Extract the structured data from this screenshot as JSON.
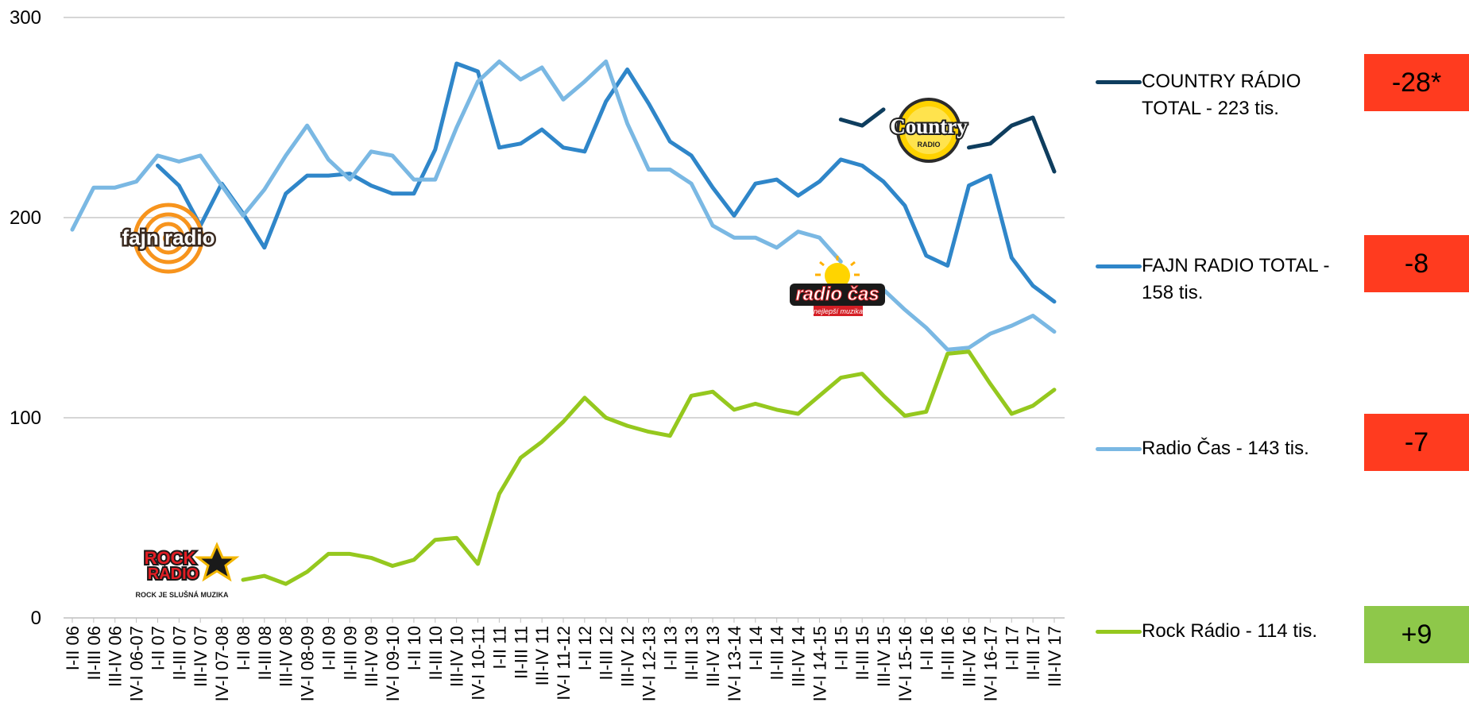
{
  "chart_data": {
    "type": "line",
    "ylim": [
      0,
      300
    ],
    "yticks": [
      0,
      100,
      200,
      300
    ],
    "grid": true,
    "legend_position": "right",
    "categories": [
      "I-II 06",
      "II-III 06",
      "III-IV 06",
      "IV-I 06-07",
      "I-II 07",
      "II-III 07",
      "III-IV 07",
      "IV-I 07-08",
      "I-II 08",
      "II-III 08",
      "III-IV 08",
      "IV-I 08-09",
      "I-II 09",
      "II-III 09",
      "III-IV 09",
      "IV-I 09-10",
      "I-II 10",
      "II-III 10",
      "III-IV 10",
      "IV-I 10-11",
      "I-II 11",
      "II-III 11",
      "III-IV 11",
      "IV-I 11-12",
      "I-II 12",
      "II-III 12",
      "III-IV 12",
      "IV-I 12-13",
      "I-II 13",
      "II-III 13",
      "III-IV 13",
      "IV-I 13-14",
      "I-II 14",
      "II-III 14",
      "III-IV 14",
      "IV-I 14-15",
      "I-II 15",
      "II-III 15",
      "III-IV 15",
      "IV-I 15-16",
      "I-II 16",
      "II-III 16",
      "III-IV 16",
      "IV-I 16-17",
      "I-II 17",
      "II-III 17",
      "III-IV 17"
    ],
    "series": [
      {
        "name": "COUNTRY RÁDIO TOTAL - 223 tis.",
        "color": "#0e3d5e",
        "values": [
          null,
          null,
          null,
          null,
          null,
          null,
          null,
          null,
          null,
          null,
          null,
          null,
          null,
          null,
          null,
          null,
          null,
          null,
          null,
          null,
          null,
          null,
          null,
          null,
          null,
          null,
          null,
          null,
          null,
          null,
          null,
          null,
          null,
          null,
          null,
          null,
          249,
          246,
          254,
          null,
          null,
          null,
          235,
          237,
          246,
          250,
          223
        ]
      },
      {
        "name": "FAJN RADIO TOTAL - 158 tis.",
        "color": "#2f86c9",
        "values": [
          null,
          null,
          null,
          null,
          226,
          216,
          196,
          217,
          202,
          185,
          212,
          221,
          221,
          222,
          216,
          212,
          212,
          234,
          277,
          273,
          235,
          237,
          244,
          235,
          233,
          258,
          274,
          257,
          238,
          231,
          215,
          201,
          217,
          219,
          211,
          218,
          229,
          226,
          218,
          206,
          181,
          176,
          216,
          221,
          180,
          166,
          158
        ]
      },
      {
        "name": "Radio Čas - 143 tis.",
        "color": "#7ab8e3",
        "values": [
          194,
          215,
          215,
          218,
          231,
          228,
          231,
          216,
          201,
          214,
          231,
          246,
          229,
          219,
          233,
          231,
          219,
          219,
          245,
          268,
          278,
          269,
          275,
          259,
          268,
          278,
          247,
          224,
          224,
          217,
          196,
          190,
          190,
          185,
          193,
          190,
          178,
          null,
          164,
          154,
          145,
          134,
          135,
          142,
          146,
          151,
          143
        ]
      },
      {
        "name": "Rock Rádio - 114 tis.",
        "color": "#95c81e",
        "values": [
          null,
          null,
          null,
          null,
          null,
          null,
          null,
          null,
          19,
          21,
          17,
          23,
          32,
          32,
          30,
          26,
          29,
          39,
          40,
          27,
          62,
          80,
          88,
          98,
          110,
          100,
          96,
          93,
          91,
          111,
          113,
          104,
          107,
          104,
          102,
          111,
          120,
          122,
          111,
          101,
          103,
          132,
          133,
          117,
          102,
          106,
          114
        ]
      }
    ]
  },
  "legend": [
    {
      "label": "COUNTRY RÁDIO TOTAL - 223 tis.",
      "color": "#0e3d5e"
    },
    {
      "label": "FAJN RADIO TOTAL - 158 tis.",
      "color": "#2f86c9"
    },
    {
      "label": "Radio Čas - 143 tis.",
      "color": "#7ab8e3"
    },
    {
      "label": "Rock Rádio - 114 tis.",
      "color": "#95c81e"
    }
  ],
  "badges": [
    {
      "label": "-28*",
      "color": "#ff3b1f"
    },
    {
      "label": "-8",
      "color": "#ff3b1f"
    },
    {
      "label": "-7",
      "color": "#ff3b1f"
    },
    {
      "label": "+9",
      "color": "#8ec84a"
    }
  ],
  "logos": {
    "fajn": "fajn radio",
    "country_main": "Country",
    "country_sub": "RADIO",
    "cas_main": "radio čas",
    "cas_sub": "nejlepší muzika",
    "rock_main1": "ROCK",
    "rock_main2": "RADIO",
    "rock_sub": "ROCK JE SLUŠNÁ MUZIKA"
  }
}
